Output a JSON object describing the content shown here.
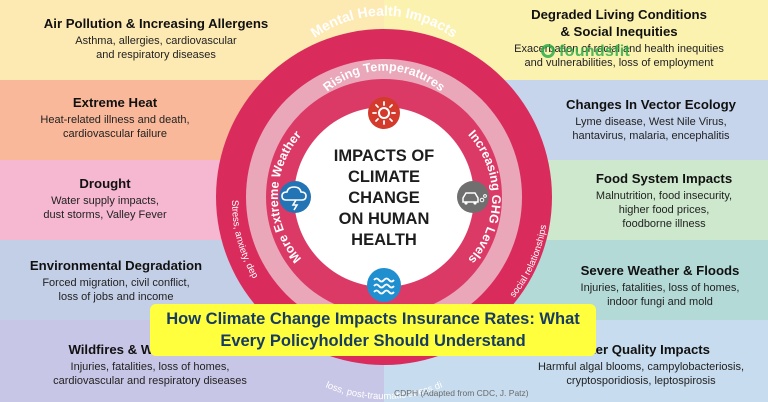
{
  "colors": {
    "band_yellow_left": "#fde9b2",
    "band_yellow_right": "#fbf2b0",
    "band_orange": "#f9b89a",
    "band_pink": "#f6b7d1",
    "band_blue_left": "#c3cfe7",
    "band_blue_right": "#c6d5ec",
    "band_green": "#cde8cd",
    "band_teal": "#b3dad7",
    "band_lavender": "#c8c6e6",
    "band_lightblue": "#c7dcee",
    "ring_outer": "#d92c5c",
    "ring_inner": "#e9a7b9",
    "banner_bg": "#ffff3d",
    "banner_text": "#173b63"
  },
  "left_items": [
    {
      "title": "Air Pollution & Increasing Allergens",
      "desc": [
        "Asthma, allergies, cardiovascular",
        "and respiratory diseases"
      ]
    },
    {
      "title": "Extreme Heat",
      "desc": [
        "Heat-related illness and death,",
        "cardiovascular failure"
      ]
    },
    {
      "title": "Drought",
      "desc": [
        "Water supply impacts,",
        "dust storms, Valley Fever"
      ]
    },
    {
      "title": "Environmental Degradation",
      "desc": [
        "Forced migration, civil conflict,",
        "loss of jobs and income"
      ]
    },
    {
      "title": "Wildfires & Wildfire S",
      "desc": [
        "Injuries, fatalities, loss of homes,",
        "cardiovascular and respiratory diseases"
      ]
    }
  ],
  "right_items": [
    {
      "title": "Degraded Living Conditions",
      "title2": "& Social Inequities",
      "desc": [
        "Exacerbation of racial and health inequities",
        "and vulnerabilities, loss of employment"
      ]
    },
    {
      "title": "Changes In Vector Ecology",
      "desc": [
        "Lyme disease, West Nile Virus,",
        "hantavirus, malaria, encephalitis"
      ]
    },
    {
      "title": "Food System Impacts",
      "desc": [
        "Malnutrition, food insecurity,",
        "higher food prices,",
        "foodborne illness"
      ]
    },
    {
      "title": "Severe Weather & Floods",
      "desc": [
        "Injuries, fatalities, loss of homes,",
        "indoor fungi and mold"
      ]
    },
    {
      "title": "Water Quality Impacts",
      "desc": [
        "Harmful algal blooms, campylobacteriosis,",
        "cryptosporidiosis, leptospirosis"
      ]
    }
  ],
  "center": {
    "lines": [
      "IMPACTS OF",
      "CLIMATE",
      "CHANGE",
      "ON HUMAN",
      "HEALTH"
    ],
    "ring_top": "Mental Health Impacts",
    "rising": "Rising Temperatures",
    "extreme": "More Extreme Weather",
    "ghg": "Increasing GHG Levels",
    "stress": "Stress, anxiety, dep",
    "ptsd": "loss, post-traumatic stress di",
    "social": "social relationships"
  },
  "icons": [
    "sun-icon",
    "storm-cloud-icon",
    "car-emissions-icon",
    "water-waves-icon"
  ],
  "watermark": "foundsfit",
  "banner": "How Climate Change Impacts Insurance Rates: What Every Policyholder Should Understand",
  "credit": "CDPH (Adapted from CDC, J. Patz)"
}
